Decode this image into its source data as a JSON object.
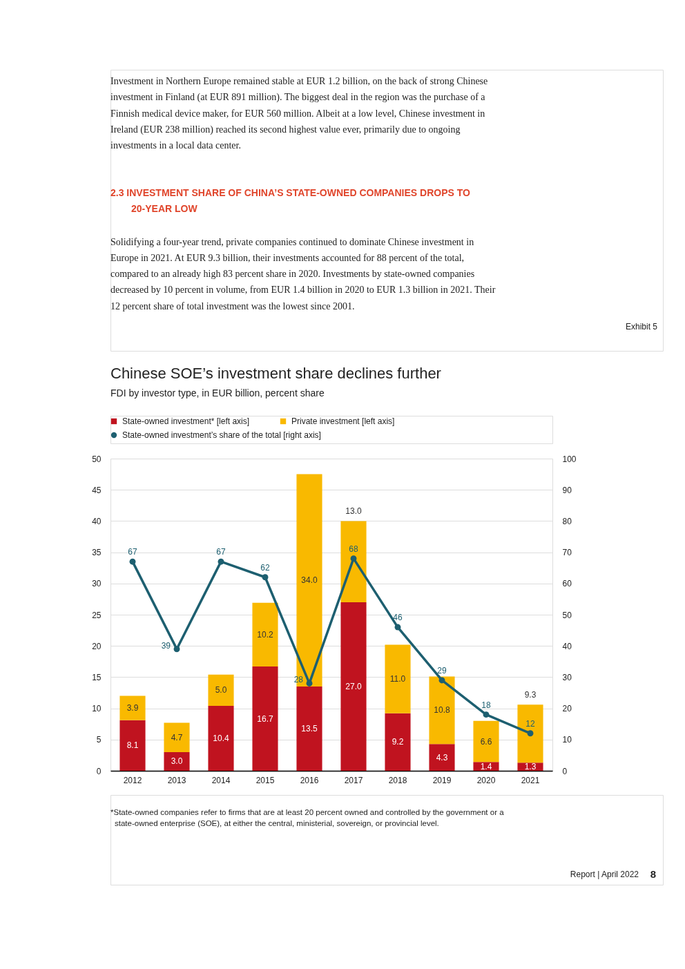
{
  "chart_data": {
    "type": "bar",
    "title": "Chinese SOE’s investment share declines further",
    "subtitle": "FDI by investor type, in EUR billion, percent share",
    "categories": [
      "2012",
      "2013",
      "2014",
      "2015",
      "2016",
      "2017",
      "2018",
      "2019",
      "2020",
      "2021"
    ],
    "stacked": true,
    "series": [
      {
        "name": "State-owned investment* [left axis]",
        "color": "#c0131f",
        "values": [
          8.1,
          3.0,
          10.4,
          16.7,
          13.5,
          27.0,
          9.2,
          4.3,
          1.4,
          1.3
        ],
        "value_labels": [
          "8.1",
          "3.0",
          "10.4",
          "16.7",
          "13.5",
          "27.0",
          "9.2",
          "4.3",
          "1.4",
          "1.3"
        ]
      },
      {
        "name": "Private investment [left axis]",
        "color": "#f9b900",
        "values": [
          3.9,
          4.7,
          5.0,
          10.2,
          34.0,
          13.0,
          11.0,
          10.8,
          6.6,
          9.3
        ],
        "value_labels": [
          "3.9",
          "4.7",
          "5.0",
          "10.2",
          "34.0",
          "13.0",
          "11.0",
          "10.8",
          "6.6",
          "9.3"
        ]
      },
      {
        "name": "State-owned investment’s share of the total [right axis]",
        "type": "line",
        "axis": "y2",
        "color": "#1d5f70",
        "values": [
          67,
          39,
          67,
          62,
          28,
          68,
          46,
          29,
          18,
          12
        ]
      }
    ],
    "ylim": [
      0,
      50
    ],
    "yticks": [
      0,
      5,
      10,
      15,
      20,
      25,
      30,
      35,
      40,
      45,
      50
    ],
    "y2lim": [
      0,
      100
    ],
    "y2ticks": [
      0,
      10,
      20,
      30,
      40,
      50,
      60,
      70,
      80,
      90,
      100
    ],
    "grid": "y",
    "legend": "top left",
    "marker": "circle",
    "data_labels": true,
    "annotations": [
      "Investment in Northern Europe remained stable at EUR 1.2 billion, on the back of strong Chinese investment in Finland (at EUR 891 million). The biggest deal in the region was the purchase of a Finnish medical device maker, for EUR 560 million. Albeit at a low level, Chinese investment in Ireland (EUR 238 million) reached its second highest value ever, primarily due to ongoing investments in a local data center.",
      "2.3 INVESTMENT SHARE OF CHINA’S STATE-OWNED COMPANIES DROPS TO 20-YEAR LOW",
      "Solidifying a four-year trend, private companies continued to dominate Chinese investment in Europe in 2021. At EUR 9.3 billion, their investments accounted for 88 percent of the total, compared to an already high 83 percent share in 2020. Investments by state-owned companies decreased by 10 percent in volume, from EUR 1.4 billion in 2020 to EUR 1.3 billion in 2021. Their 12 percent share of total investment was the lowest since 2001.",
      "Exhibit 5",
      "*State-owned companies refer to firms that are at least 20 percent owned and controlled by the government or a state-owned enterprise (SOE), at either the central, ministerial, sovereign, or provincial level.",
      "Report | April 2022",
      "8"
    ]
  }
}
